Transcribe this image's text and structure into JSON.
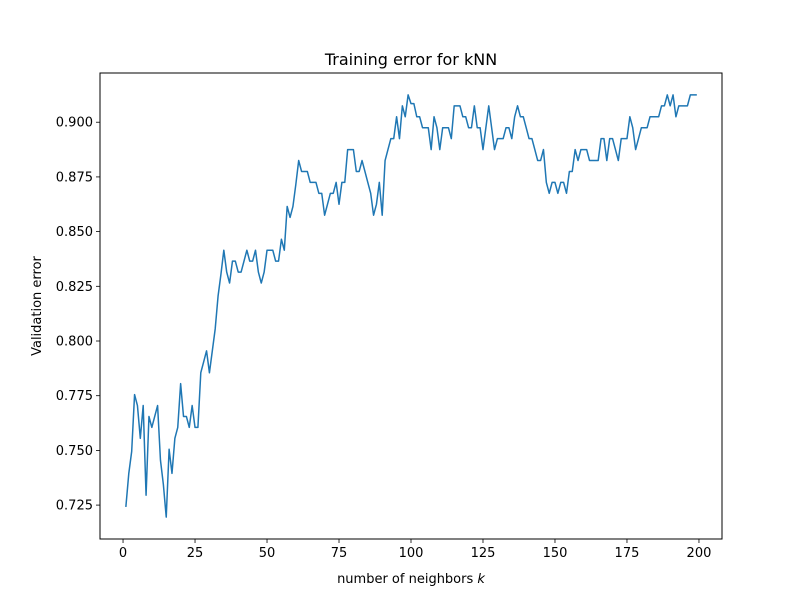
{
  "chart_data": {
    "type": "line",
    "title": "Training error for kNN",
    "xlabel_prefix": "number of neighbors ",
    "xlabel_var": "k",
    "ylabel": "Validation error",
    "xlim": [
      -8,
      208
    ],
    "ylim": [
      0.7095,
      0.9225
    ],
    "xticks": [
      0,
      25,
      50,
      75,
      100,
      125,
      150,
      175,
      200
    ],
    "yticks": [
      0.725,
      0.75,
      0.775,
      0.8,
      0.825,
      0.85,
      0.875,
      0.9
    ],
    "ytick_labels": [
      "0.725",
      "0.750",
      "0.775",
      "0.800",
      "0.825",
      "0.850",
      "0.875",
      "0.900"
    ],
    "grid": false,
    "color": "#1f77b4",
    "series": [
      {
        "x": [
          1,
          2,
          3,
          4,
          5,
          6,
          7,
          8,
          9,
          10,
          11,
          12,
          13,
          14,
          15,
          16,
          17,
          18,
          19,
          20,
          21,
          22,
          23,
          24,
          25,
          26,
          27,
          28,
          29,
          30,
          31,
          32,
          33,
          34,
          35,
          36,
          37,
          38,
          39,
          40,
          41,
          42,
          43,
          44,
          45,
          46,
          47,
          48,
          49,
          50,
          51,
          52,
          53,
          54,
          55,
          56,
          57,
          58,
          59,
          60,
          61,
          62,
          63,
          64,
          65,
          66,
          67,
          68,
          69,
          70,
          71,
          72,
          73,
          74,
          75,
          76,
          77,
          78,
          79,
          80,
          81,
          82,
          83,
          84,
          85,
          86,
          87,
          88,
          89,
          90,
          91,
          92,
          93,
          94,
          95,
          96,
          97,
          98,
          99,
          100,
          101,
          102,
          103,
          104,
          105,
          106,
          107,
          108,
          109,
          110,
          111,
          112,
          113,
          114,
          115,
          116,
          117,
          118,
          119,
          120,
          121,
          122,
          123,
          124,
          125,
          126,
          127,
          128,
          129,
          130,
          131,
          132,
          133,
          134,
          135,
          136,
          137,
          138,
          139,
          140,
          141,
          142,
          143,
          144,
          145,
          146,
          147,
          148,
          149,
          150,
          151,
          152,
          153,
          154,
          155,
          156,
          157,
          158,
          159,
          160,
          161,
          162,
          163,
          164,
          165,
          166,
          167,
          168,
          169,
          170,
          171,
          172,
          173,
          174,
          175,
          176,
          177,
          178,
          179,
          180,
          181,
          182,
          183,
          184,
          185,
          186,
          187,
          188,
          189,
          190,
          191,
          192,
          193,
          194,
          195,
          196,
          197,
          198,
          199
        ],
        "values": [
          0.7245,
          0.7395,
          0.7495,
          0.7755,
          0.7705,
          0.7555,
          0.7705,
          0.7295,
          0.7655,
          0.7605,
          0.7655,
          0.7705,
          0.7455,
          0.7345,
          0.7195,
          0.7505,
          0.7395,
          0.7555,
          0.7605,
          0.7805,
          0.7655,
          0.7655,
          0.7605,
          0.7705,
          0.7605,
          0.7605,
          0.7855,
          0.7905,
          0.7955,
          0.7855,
          0.7955,
          0.8055,
          0.8205,
          0.8305,
          0.8415,
          0.8315,
          0.8265,
          0.8365,
          0.8365,
          0.8315,
          0.8315,
          0.8365,
          0.8415,
          0.8365,
          0.8365,
          0.8415,
          0.8315,
          0.8265,
          0.8315,
          0.8415,
          0.8415,
          0.8415,
          0.8365,
          0.8365,
          0.8465,
          0.8415,
          0.8615,
          0.8565,
          0.8615,
          0.8715,
          0.8825,
          0.8775,
          0.8775,
          0.8775,
          0.8725,
          0.8725,
          0.8725,
          0.8675,
          0.8675,
          0.8575,
          0.8625,
          0.8675,
          0.8675,
          0.8725,
          0.8625,
          0.8725,
          0.8725,
          0.8875,
          0.8875,
          0.8875,
          0.8775,
          0.8775,
          0.8825,
          0.8775,
          0.8725,
          0.8675,
          0.8575,
          0.8625,
          0.8725,
          0.8575,
          0.8825,
          0.8875,
          0.8925,
          0.8925,
          0.9025,
          0.8925,
          0.9075,
          0.9025,
          0.9125,
          0.9085,
          0.9085,
          0.9025,
          0.9025,
          0.8975,
          0.8975,
          0.8975,
          0.8875,
          0.9025,
          0.8975,
          0.8875,
          0.8975,
          0.8975,
          0.8975,
          0.8925,
          0.9075,
          0.9075,
          0.9075,
          0.9025,
          0.9025,
          0.8975,
          0.8975,
          0.9075,
          0.8975,
          0.8975,
          0.8875,
          0.8975,
          0.9075,
          0.8975,
          0.8875,
          0.8925,
          0.8925,
          0.8925,
          0.8975,
          0.8975,
          0.8925,
          0.9025,
          0.9075,
          0.9025,
          0.9025,
          0.8975,
          0.8925,
          0.8925,
          0.8875,
          0.8825,
          0.8825,
          0.8875,
          0.8725,
          0.8675,
          0.8725,
          0.8725,
          0.8675,
          0.8725,
          0.8725,
          0.8675,
          0.8775,
          0.8775,
          0.8875,
          0.8825,
          0.8875,
          0.8875,
          0.8875,
          0.8825,
          0.8825,
          0.8825,
          0.8825,
          0.8925,
          0.8925,
          0.8825,
          0.8925,
          0.8925,
          0.8875,
          0.8825,
          0.8925,
          0.8925,
          0.8925,
          0.9025,
          0.8975,
          0.8875,
          0.8925,
          0.8975,
          0.8975,
          0.8975,
          0.9025,
          0.9025,
          0.9025,
          0.9025,
          0.9075,
          0.9075,
          0.9125,
          0.9075,
          0.9125,
          0.9025,
          0.9075,
          0.9075,
          0.9075,
          0.9075,
          0.9125,
          0.9125,
          0.9125
        ]
      }
    ]
  }
}
